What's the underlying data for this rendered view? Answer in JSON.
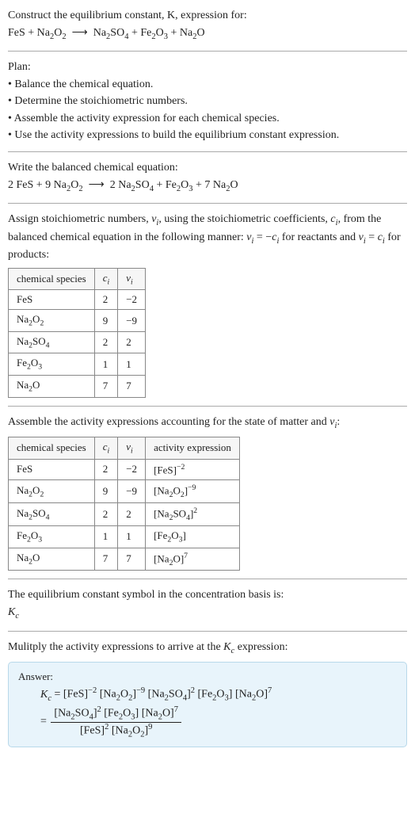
{
  "intro": {
    "line1": "Construct the equilibrium constant, K, expression for:",
    "eq_html": "FeS + Na<sub>2</sub>O<sub>2</sub> &nbsp;⟶&nbsp; Na<sub>2</sub>SO<sub>4</sub> + Fe<sub>2</sub>O<sub>3</sub> + Na<sub>2</sub>O"
  },
  "plan": {
    "title": "Plan:",
    "b1": "• Balance the chemical equation.",
    "b2": "• Determine the stoichiometric numbers.",
    "b3": "• Assemble the activity expression for each chemical species.",
    "b4": "• Use the activity expressions to build the equilibrium constant expression."
  },
  "balanced": {
    "title": "Write the balanced chemical equation:",
    "eq_html": "2 FeS + 9 Na<sub>2</sub>O<sub>2</sub> &nbsp;⟶&nbsp; 2 Na<sub>2</sub>SO<sub>4</sub> + Fe<sub>2</sub>O<sub>3</sub> + 7 Na<sub>2</sub>O"
  },
  "stoich": {
    "intro_html": "Assign stoichiometric numbers, <i>ν<sub>i</sub></i>, using the stoichiometric coefficients, <i>c<sub>i</sub></i>, from the balanced chemical equation in the following manner: <i>ν<sub>i</sub></i> = −<i>c<sub>i</sub></i> for reactants and <i>ν<sub>i</sub></i> = <i>c<sub>i</sub></i> for products:",
    "headers": {
      "h1": "chemical species",
      "h2_html": "<i>c<sub>i</sub></i>",
      "h3_html": "<i>ν<sub>i</sub></i>"
    },
    "rows": [
      {
        "sp_html": "FeS",
        "c": "2",
        "v": "−2"
      },
      {
        "sp_html": "Na<sub>2</sub>O<sub>2</sub>",
        "c": "9",
        "v": "−9"
      },
      {
        "sp_html": "Na<sub>2</sub>SO<sub>4</sub>",
        "c": "2",
        "v": "2"
      },
      {
        "sp_html": "Fe<sub>2</sub>O<sub>3</sub>",
        "c": "1",
        "v": "1"
      },
      {
        "sp_html": "Na<sub>2</sub>O",
        "c": "7",
        "v": "7"
      }
    ]
  },
  "activity": {
    "intro_html": "Assemble the activity expressions accounting for the state of matter and <i>ν<sub>i</sub></i>:",
    "headers": {
      "h1": "chemical species",
      "h2_html": "<i>c<sub>i</sub></i>",
      "h3_html": "<i>ν<sub>i</sub></i>",
      "h4": "activity expression"
    },
    "rows": [
      {
        "sp_html": "FeS",
        "c": "2",
        "v": "−2",
        "ae_html": "[FeS]<sup>−2</sup>"
      },
      {
        "sp_html": "Na<sub>2</sub>O<sub>2</sub>",
        "c": "9",
        "v": "−9",
        "ae_html": "[Na<sub>2</sub>O<sub>2</sub>]<sup>−9</sup>"
      },
      {
        "sp_html": "Na<sub>2</sub>SO<sub>4</sub>",
        "c": "2",
        "v": "2",
        "ae_html": "[Na<sub>2</sub>SO<sub>4</sub>]<sup>2</sup>"
      },
      {
        "sp_html": "Fe<sub>2</sub>O<sub>3</sub>",
        "c": "1",
        "v": "1",
        "ae_html": "[Fe<sub>2</sub>O<sub>3</sub>]"
      },
      {
        "sp_html": "Na<sub>2</sub>O",
        "c": "7",
        "v": "7",
        "ae_html": "[Na<sub>2</sub>O]<sup>7</sup>"
      }
    ]
  },
  "kc_symbol": {
    "line1": "The equilibrium constant symbol in the concentration basis is:",
    "line2_html": "<i>K<sub>c</sub></i>"
  },
  "multiply": {
    "line_html": "Mulitply the activity expressions to arrive at the <i>K<sub>c</sub></i> expression:"
  },
  "answer": {
    "label": "Answer:",
    "row1_html": "<i>K<sub>c</sub></i> = [FeS]<sup>−2</sup> [Na<sub>2</sub>O<sub>2</sub>]<sup>−9</sup> [Na<sub>2</sub>SO<sub>4</sub>]<sup>2</sup> [Fe<sub>2</sub>O<sub>3</sub>] [Na<sub>2</sub>O]<sup>7</sup>",
    "num_html": "[Na<sub>2</sub>SO<sub>4</sub>]<sup>2</sup> [Fe<sub>2</sub>O<sub>3</sub>] [Na<sub>2</sub>O]<sup>7</sup>",
    "den_html": "[FeS]<sup>2</sup> [Na<sub>2</sub>O<sub>2</sub>]<sup>9</sup>"
  }
}
